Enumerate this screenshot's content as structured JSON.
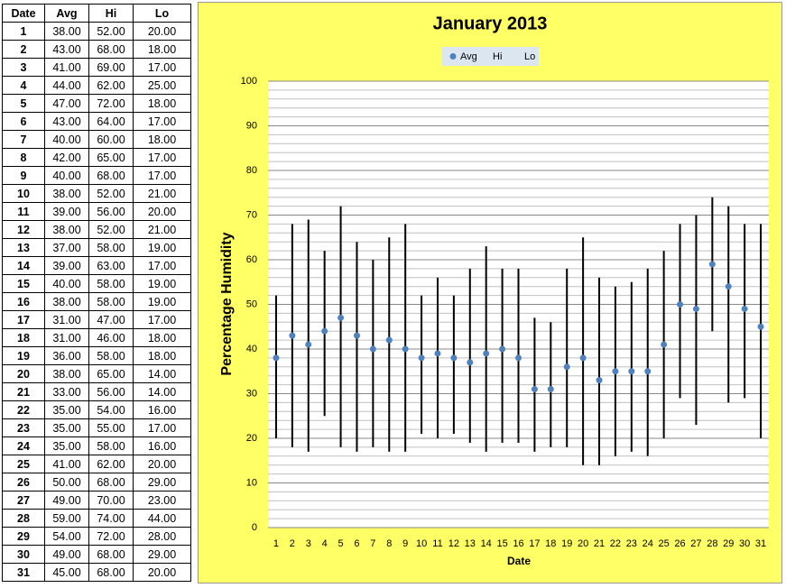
{
  "table": {
    "header": [
      "Date",
      "Avg",
      "Hi",
      "Lo"
    ],
    "rows": [
      [
        "1",
        "38.00",
        "52.00",
        "20.00"
      ],
      [
        "2",
        "43.00",
        "68.00",
        "18.00"
      ],
      [
        "3",
        "41.00",
        "69.00",
        "17.00"
      ],
      [
        "4",
        "44.00",
        "62.00",
        "25.00"
      ],
      [
        "5",
        "47.00",
        "72.00",
        "18.00"
      ],
      [
        "6",
        "43.00",
        "64.00",
        "17.00"
      ],
      [
        "7",
        "40.00",
        "60.00",
        "18.00"
      ],
      [
        "8",
        "42.00",
        "65.00",
        "17.00"
      ],
      [
        "9",
        "40.00",
        "68.00",
        "17.00"
      ],
      [
        "10",
        "38.00",
        "52.00",
        "21.00"
      ],
      [
        "11",
        "39.00",
        "56.00",
        "20.00"
      ],
      [
        "12",
        "38.00",
        "52.00",
        "21.00"
      ],
      [
        "13",
        "37.00",
        "58.00",
        "19.00"
      ],
      [
        "14",
        "39.00",
        "63.00",
        "17.00"
      ],
      [
        "15",
        "40.00",
        "58.00",
        "19.00"
      ],
      [
        "16",
        "38.00",
        "58.00",
        "19.00"
      ],
      [
        "17",
        "31.00",
        "47.00",
        "17.00"
      ],
      [
        "18",
        "31.00",
        "46.00",
        "18.00"
      ],
      [
        "19",
        "36.00",
        "58.00",
        "18.00"
      ],
      [
        "20",
        "38.00",
        "65.00",
        "14.00"
      ],
      [
        "21",
        "33.00",
        "56.00",
        "14.00"
      ],
      [
        "22",
        "35.00",
        "54.00",
        "16.00"
      ],
      [
        "23",
        "35.00",
        "55.00",
        "17.00"
      ],
      [
        "24",
        "35.00",
        "58.00",
        "16.00"
      ],
      [
        "25",
        "41.00",
        "62.00",
        "20.00"
      ],
      [
        "26",
        "50.00",
        "68.00",
        "29.00"
      ],
      [
        "27",
        "49.00",
        "70.00",
        "23.00"
      ],
      [
        "28",
        "59.00",
        "74.00",
        "44.00"
      ],
      [
        "29",
        "54.00",
        "72.00",
        "28.00"
      ],
      [
        "30",
        "49.00",
        "68.00",
        "29.00"
      ],
      [
        "31",
        "45.00",
        "68.00",
        "20.00"
      ]
    ]
  },
  "chart_data": {
    "type": "hilo",
    "title": "January 2013",
    "xlabel": "Date",
    "ylabel": "Percentage Humidity",
    "categories": [
      1,
      2,
      3,
      4,
      5,
      6,
      7,
      8,
      9,
      10,
      11,
      12,
      13,
      14,
      15,
      16,
      17,
      18,
      19,
      20,
      21,
      22,
      23,
      24,
      25,
      26,
      27,
      28,
      29,
      30,
      31
    ],
    "series": [
      {
        "name": "Avg",
        "color": "#4f81bd",
        "values": [
          38,
          43,
          41,
          44,
          47,
          43,
          40,
          42,
          40,
          38,
          39,
          38,
          37,
          39,
          40,
          38,
          31,
          31,
          36,
          38,
          33,
          35,
          35,
          35,
          41,
          50,
          49,
          59,
          54,
          49,
          45
        ]
      },
      {
        "name": "Hi",
        "color": "#000000",
        "values": [
          52,
          68,
          69,
          62,
          72,
          64,
          60,
          65,
          68,
          52,
          56,
          52,
          58,
          63,
          58,
          58,
          47,
          46,
          58,
          65,
          56,
          54,
          55,
          58,
          62,
          68,
          70,
          74,
          72,
          68,
          68
        ]
      },
      {
        "name": "Lo",
        "color": "#000000",
        "values": [
          20,
          18,
          17,
          25,
          18,
          17,
          18,
          17,
          17,
          21,
          20,
          21,
          19,
          17,
          19,
          19,
          17,
          18,
          18,
          14,
          14,
          16,
          17,
          16,
          20,
          29,
          23,
          44,
          28,
          29,
          20
        ]
      }
    ],
    "ylim": [
      0,
      100
    ],
    "yticks": [
      0,
      10,
      20,
      30,
      40,
      50,
      60,
      70,
      80,
      90,
      100
    ],
    "grid": true,
    "minor_grid_step": 2,
    "legend": "top"
  }
}
